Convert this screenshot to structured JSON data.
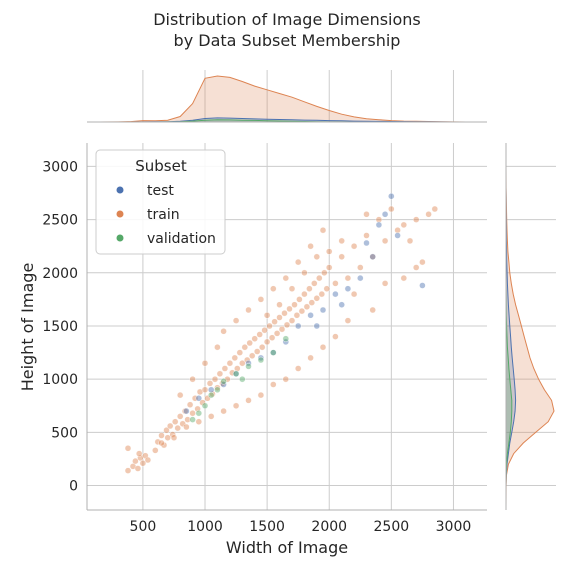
{
  "chart_data": {
    "type": "scatter",
    "title_lines": [
      "Distribution of Image Dimensions",
      "by Data Subset Membership"
    ],
    "xlabel": "Width of Image",
    "ylabel": "Height of Image",
    "xlim": [
      50,
      3270
    ],
    "ylim": [
      -230,
      3220
    ],
    "x_ticks": [
      500,
      1000,
      1500,
      2000,
      2500,
      3000
    ],
    "y_ticks": [
      0,
      500,
      1000,
      1500,
      2000,
      2500,
      3000
    ],
    "grid": true,
    "legend": {
      "title": "Subset",
      "placement": "top-left",
      "entries": [
        "test",
        "train",
        "validation"
      ]
    },
    "colors": {
      "test": "#4c72b0",
      "train": "#dd8452",
      "validation": "#55a868",
      "grid": "#cccccc",
      "axis": "#b0b0b0"
    },
    "marginal_x": {
      "x": [
        150,
        300,
        400,
        500,
        600,
        700,
        800,
        900,
        1000,
        1100,
        1200,
        1300,
        1400,
        1500,
        1600,
        1700,
        1800,
        1900,
        2000,
        2100,
        2200,
        2300,
        2400,
        2500,
        2600,
        2700,
        2800,
        2900,
        3000,
        3100
      ],
      "train": [
        0.0,
        0.003,
        0.008,
        0.03,
        0.025,
        0.04,
        0.12,
        0.4,
        0.95,
        1.0,
        0.97,
        0.88,
        0.78,
        0.7,
        0.62,
        0.54,
        0.44,
        0.34,
        0.25,
        0.17,
        0.11,
        0.07,
        0.05,
        0.03,
        0.02,
        0.015,
        0.01,
        0.006,
        0.003,
        0.0
      ],
      "test": [
        0.0,
        0.0,
        0.001,
        0.003,
        0.004,
        0.006,
        0.015,
        0.04,
        0.075,
        0.09,
        0.085,
        0.075,
        0.068,
        0.06,
        0.055,
        0.048,
        0.042,
        0.036,
        0.03,
        0.025,
        0.02,
        0.016,
        0.013,
        0.01,
        0.008,
        0.006,
        0.004,
        0.002,
        0.001,
        0.0
      ],
      "validation": [
        0.0,
        0.0,
        0.0,
        0.0,
        0.001,
        0.002,
        0.006,
        0.02,
        0.04,
        0.05,
        0.045,
        0.04,
        0.035,
        0.028,
        0.022,
        0.015,
        0.01,
        0.006,
        0.003,
        0.002,
        0.001,
        0.0,
        0.0,
        0.0,
        0.0,
        0.0,
        0.0,
        0.0,
        0.0,
        0.0
      ]
    },
    "marginal_y": {
      "y": [
        -200,
        0,
        100,
        200,
        300,
        400,
        500,
        600,
        700,
        800,
        900,
        1000,
        1100,
        1200,
        1300,
        1400,
        1500,
        1600,
        1700,
        1800,
        1900,
        2000,
        2100,
        2200,
        2300,
        2400,
        2500,
        2600,
        2700,
        2800,
        3000
      ],
      "train": [
        0.0,
        0.003,
        0.01,
        0.05,
        0.16,
        0.36,
        0.62,
        0.88,
        1.0,
        0.95,
        0.8,
        0.68,
        0.58,
        0.5,
        0.44,
        0.38,
        0.32,
        0.26,
        0.2,
        0.15,
        0.11,
        0.08,
        0.06,
        0.04,
        0.03,
        0.02,
        0.015,
        0.01,
        0.006,
        0.003,
        0.0
      ],
      "test": [
        0.0,
        0.001,
        0.005,
        0.02,
        0.05,
        0.08,
        0.12,
        0.16,
        0.19,
        0.2,
        0.19,
        0.17,
        0.15,
        0.13,
        0.11,
        0.095,
        0.08,
        0.065,
        0.05,
        0.04,
        0.03,
        0.022,
        0.016,
        0.012,
        0.009,
        0.006,
        0.004,
        0.003,
        0.002,
        0.001,
        0.0
      ],
      "validation": [
        0.0,
        0.0,
        0.002,
        0.01,
        0.03,
        0.06,
        0.09,
        0.11,
        0.12,
        0.12,
        0.1,
        0.08,
        0.06,
        0.045,
        0.03,
        0.02,
        0.012,
        0.007,
        0.004,
        0.002,
        0.001,
        0.0,
        0.0,
        0.0,
        0.0,
        0.0,
        0.0,
        0.0,
        0.0,
        0.0,
        0.0
      ]
    },
    "series": [
      {
        "name": "train",
        "points": [
          [
            380,
            140
          ],
          [
            420,
            180
          ],
          [
            440,
            230
          ],
          [
            460,
            160
          ],
          [
            480,
            260
          ],
          [
            500,
            210
          ],
          [
            520,
            280
          ],
          [
            540,
            240
          ],
          [
            380,
            350
          ],
          [
            470,
            300
          ],
          [
            600,
            330
          ],
          [
            620,
            410
          ],
          [
            650,
            470
          ],
          [
            670,
            380
          ],
          [
            690,
            520
          ],
          [
            700,
            450
          ],
          [
            720,
            560
          ],
          [
            740,
            480
          ],
          [
            760,
            600
          ],
          [
            780,
            540
          ],
          [
            800,
            650
          ],
          [
            820,
            580
          ],
          [
            840,
            700
          ],
          [
            860,
            620
          ],
          [
            880,
            760
          ],
          [
            900,
            680
          ],
          [
            920,
            820
          ],
          [
            940,
            720
          ],
          [
            960,
            880
          ],
          [
            980,
            780
          ],
          [
            1000,
            900
          ],
          [
            1020,
            820
          ],
          [
            1040,
            960
          ],
          [
            1060,
            860
          ],
          [
            1080,
            1000
          ],
          [
            1100,
            920
          ],
          [
            1120,
            1050
          ],
          [
            1140,
            960
          ],
          [
            1160,
            1100
          ],
          [
            1180,
            1000
          ],
          [
            1200,
            1150
          ],
          [
            1220,
            1060
          ],
          [
            1240,
            1200
          ],
          [
            1260,
            1100
          ],
          [
            1280,
            1250
          ],
          [
            1300,
            1150
          ],
          [
            1320,
            1300
          ],
          [
            1340,
            1180
          ],
          [
            1360,
            1340
          ],
          [
            1380,
            1220
          ],
          [
            1400,
            1380
          ],
          [
            1420,
            1260
          ],
          [
            1440,
            1420
          ],
          [
            1460,
            1300
          ],
          [
            1480,
            1460
          ],
          [
            1500,
            1350
          ],
          [
            1520,
            1500
          ],
          [
            1540,
            1390
          ],
          [
            1560,
            1540
          ],
          [
            1580,
            1430
          ],
          [
            1600,
            1580
          ],
          [
            1620,
            1470
          ],
          [
            1640,
            1620
          ],
          [
            1660,
            1510
          ],
          [
            1680,
            1660
          ],
          [
            1700,
            1550
          ],
          [
            1720,
            1700
          ],
          [
            1740,
            1600
          ],
          [
            1760,
            1750
          ],
          [
            1780,
            1640
          ],
          [
            1800,
            1800
          ],
          [
            1820,
            1680
          ],
          [
            1840,
            1850
          ],
          [
            1860,
            1720
          ],
          [
            1880,
            1900
          ],
          [
            1900,
            1760
          ],
          [
            1920,
            1950
          ],
          [
            1940,
            1800
          ],
          [
            1960,
            2000
          ],
          [
            1980,
            1850
          ],
          [
            2000,
            2050
          ],
          [
            2050,
            1900
          ],
          [
            2100,
            2150
          ],
          [
            2150,
            1950
          ],
          [
            2200,
            2250
          ],
          [
            2250,
            2050
          ],
          [
            2300,
            2350
          ],
          [
            2350,
            2150
          ],
          [
            2400,
            2500
          ],
          [
            2450,
            2300
          ],
          [
            2500,
            2600
          ],
          [
            2550,
            2400
          ],
          [
            2600,
            2450
          ],
          [
            2650,
            2300
          ],
          [
            2700,
            2500
          ],
          [
            2750,
            2100
          ],
          [
            2800,
            2550
          ],
          [
            2850,
            2600
          ],
          [
            2700,
            2050
          ],
          [
            2600,
            1950
          ],
          [
            2450,
            1900
          ],
          [
            2350,
            1650
          ],
          [
            2200,
            1800
          ],
          [
            2150,
            1550
          ],
          [
            2050,
            1400
          ],
          [
            1950,
            1300
          ],
          [
            1850,
            1200
          ],
          [
            1750,
            1100
          ],
          [
            1650,
            1000
          ],
          [
            1550,
            950
          ],
          [
            1450,
            850
          ],
          [
            1350,
            800
          ],
          [
            1250,
            750
          ],
          [
            1150,
            700
          ],
          [
            1050,
            650
          ],
          [
            950,
            600
          ],
          [
            850,
            550
          ],
          [
            750,
            450
          ],
          [
            650,
            400
          ],
          [
            1150,
            1450
          ],
          [
            1250,
            1550
          ],
          [
            1350,
            1650
          ],
          [
            1450,
            1750
          ],
          [
            1550,
            1850
          ],
          [
            1650,
            1950
          ],
          [
            1750,
            2100
          ],
          [
            1850,
            2250
          ],
          [
            1950,
            2400
          ],
          [
            2100,
            2300
          ],
          [
            2300,
            2550
          ],
          [
            1100,
            1300
          ],
          [
            1000,
            1150
          ],
          [
            900,
            1000
          ],
          [
            800,
            850
          ],
          [
            1700,
            1850
          ],
          [
            1600,
            1700
          ],
          [
            1500,
            1600
          ],
          [
            1900,
            2150
          ],
          [
            2000,
            2200
          ],
          [
            1800,
            2000
          ]
        ]
      },
      {
        "name": "test",
        "points": [
          [
            2500,
            2720
          ],
          [
            2400,
            2450
          ],
          [
            2450,
            2550
          ],
          [
            2550,
            2350
          ],
          [
            2750,
            1880
          ],
          [
            2350,
            2150
          ],
          [
            2250,
            1950
          ],
          [
            2150,
            1850
          ],
          [
            2050,
            1800
          ],
          [
            1950,
            1650
          ],
          [
            1850,
            1600
          ],
          [
            1750,
            1500
          ],
          [
            1650,
            1350
          ],
          [
            1550,
            1250
          ],
          [
            1450,
            1200
          ],
          [
            1350,
            1150
          ],
          [
            1250,
            1050
          ],
          [
            1150,
            950
          ],
          [
            1050,
            900
          ],
          [
            950,
            820
          ],
          [
            850,
            700
          ],
          [
            2300,
            2280
          ],
          [
            2100,
            1700
          ],
          [
            1900,
            1500
          ]
        ]
      },
      {
        "name": "validation",
        "points": [
          [
            950,
            680
          ],
          [
            1050,
            850
          ],
          [
            1150,
            980
          ],
          [
            1250,
            1050
          ],
          [
            1350,
            1120
          ],
          [
            1450,
            1180
          ],
          [
            1550,
            1250
          ],
          [
            1650,
            1380
          ],
          [
            1000,
            750
          ],
          [
            1100,
            900
          ],
          [
            900,
            620
          ],
          [
            1300,
            1000
          ]
        ]
      }
    ]
  }
}
